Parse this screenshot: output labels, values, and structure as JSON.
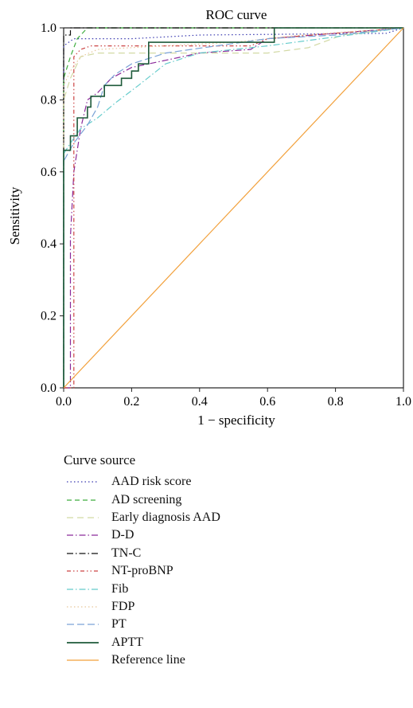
{
  "chart_data": {
    "type": "line",
    "title": "ROC curve",
    "xlabel": "1 − specificity",
    "ylabel": "Sensitivity",
    "xlim": [
      0,
      1
    ],
    "ylim": [
      0,
      1
    ],
    "xticks": [
      "0.0",
      "0.2",
      "0.4",
      "0.6",
      "0.8",
      "1.0"
    ],
    "yticks": [
      "0.0",
      "0.2",
      "0.4",
      "0.6",
      "0.8",
      "1.0"
    ],
    "grid": false,
    "legend_title": "Curve source",
    "legend_position": "bottom",
    "series": [
      {
        "name": "AAD risk score",
        "color": "#3a3ab0",
        "dash": "1.5,3",
        "points": [
          [
            0,
            0
          ],
          [
            0,
            0.95
          ],
          [
            0.03,
            0.97
          ],
          [
            0.2,
            0.97
          ],
          [
            0.4,
            0.98
          ],
          [
            0.95,
            0.985
          ],
          [
            1,
            1
          ]
        ]
      },
      {
        "name": "AD screening",
        "color": "#3fae3f",
        "dash": "6,4",
        "points": [
          [
            0,
            0
          ],
          [
            0,
            0.86
          ],
          [
            0.02,
            0.92
          ],
          [
            0.04,
            0.97
          ],
          [
            0.07,
            1.0
          ],
          [
            1,
            1
          ]
        ]
      },
      {
        "name": "Early diagnosis AAD",
        "color": "#d2d9a4",
        "dash": "8,5",
        "points": [
          [
            0,
            0
          ],
          [
            0,
            0.8
          ],
          [
            0.02,
            0.86
          ],
          [
            0.05,
            0.92
          ],
          [
            0.1,
            0.93
          ],
          [
            0.3,
            0.93
          ],
          [
            0.6,
            0.93
          ],
          [
            0.72,
            0.945
          ],
          [
            0.82,
            0.98
          ],
          [
            1,
            1
          ]
        ]
      },
      {
        "name": "D-D",
        "color": "#8a2a9a",
        "dash": "8,3,1.5,3",
        "points": [
          [
            0,
            0
          ],
          [
            0.02,
            0
          ],
          [
            0.02,
            0.42
          ],
          [
            0.03,
            0.6
          ],
          [
            0.05,
            0.72
          ],
          [
            0.07,
            0.8
          ],
          [
            0.1,
            0.82
          ],
          [
            0.14,
            0.86
          ],
          [
            0.2,
            0.89
          ],
          [
            0.3,
            0.91
          ],
          [
            0.4,
            0.93
          ],
          [
            0.55,
            0.94
          ],
          [
            0.6,
            0.97
          ],
          [
            1,
            1
          ]
        ]
      },
      {
        "name": "TN-C",
        "color": "#111111",
        "dash": "8,3,1.5,3",
        "points": [
          [
            0,
            0
          ],
          [
            0,
            0.98
          ],
          [
            0.02,
            0.98
          ],
          [
            0.02,
            1.0
          ],
          [
            1,
            1
          ]
        ]
      },
      {
        "name": "NT-proBNP",
        "color": "#cc4444",
        "dash": "5,3,1.5,3,1.5,3",
        "points": [
          [
            0,
            0
          ],
          [
            0.03,
            0
          ],
          [
            0.03,
            0.92
          ],
          [
            0.05,
            0.94
          ],
          [
            0.08,
            0.95
          ],
          [
            0.3,
            0.95
          ],
          [
            0.55,
            0.95
          ],
          [
            0.6,
            0.97
          ],
          [
            1,
            1
          ]
        ]
      },
      {
        "name": "Fib",
        "color": "#66cccc",
        "dash": "8,3,1.5,3",
        "points": [
          [
            0,
            0
          ],
          [
            0,
            0.65
          ],
          [
            0.02,
            0.68
          ],
          [
            0.05,
            0.72
          ],
          [
            0.1,
            0.75
          ],
          [
            0.15,
            0.79
          ],
          [
            0.22,
            0.84
          ],
          [
            0.3,
            0.9
          ],
          [
            0.4,
            0.93
          ],
          [
            0.6,
            0.95
          ],
          [
            1,
            1
          ]
        ]
      },
      {
        "name": "FDP",
        "color": "#e8c79a",
        "dash": "1.5,3",
        "points": [
          [
            0,
            0
          ],
          [
            0,
            0.84
          ],
          [
            0.02,
            0.88
          ],
          [
            0.05,
            0.92
          ],
          [
            0.1,
            0.94
          ],
          [
            0.3,
            0.95
          ],
          [
            0.5,
            0.96
          ],
          [
            0.7,
            0.98
          ],
          [
            1,
            1
          ]
        ]
      },
      {
        "name": "PT",
        "color": "#7aa2d6",
        "dash": "9,4",
        "points": [
          [
            0,
            0
          ],
          [
            0,
            0.63
          ],
          [
            0.03,
            0.68
          ],
          [
            0.07,
            0.73
          ],
          [
            0.1,
            0.78
          ],
          [
            0.12,
            0.84
          ],
          [
            0.15,
            0.87
          ],
          [
            0.2,
            0.9
          ],
          [
            0.3,
            0.93
          ],
          [
            0.45,
            0.95
          ],
          [
            0.6,
            0.97
          ],
          [
            0.8,
            0.98
          ],
          [
            1,
            1
          ]
        ]
      },
      {
        "name": "APTT",
        "color": "#1e5a3a",
        "dash": "",
        "points": [
          [
            0,
            0
          ],
          [
            0,
            0.66
          ],
          [
            0.02,
            0.66
          ],
          [
            0.02,
            0.7
          ],
          [
            0.04,
            0.7
          ],
          [
            0.04,
            0.75
          ],
          [
            0.07,
            0.75
          ],
          [
            0.07,
            0.78
          ],
          [
            0.08,
            0.78
          ],
          [
            0.08,
            0.81
          ],
          [
            0.12,
            0.81
          ],
          [
            0.12,
            0.84
          ],
          [
            0.17,
            0.84
          ],
          [
            0.17,
            0.86
          ],
          [
            0.2,
            0.86
          ],
          [
            0.2,
            0.88
          ],
          [
            0.22,
            0.88
          ],
          [
            0.22,
            0.9
          ],
          [
            0.25,
            0.9
          ],
          [
            0.25,
            0.96
          ],
          [
            0.37,
            0.96
          ],
          [
            0.62,
            0.96
          ],
          [
            0.62,
            1.0
          ],
          [
            1,
            1
          ]
        ]
      },
      {
        "name": "Reference line",
        "color": "#f2a03a",
        "dash": "",
        "points": [
          [
            0,
            0
          ],
          [
            1,
            1
          ]
        ]
      }
    ]
  }
}
